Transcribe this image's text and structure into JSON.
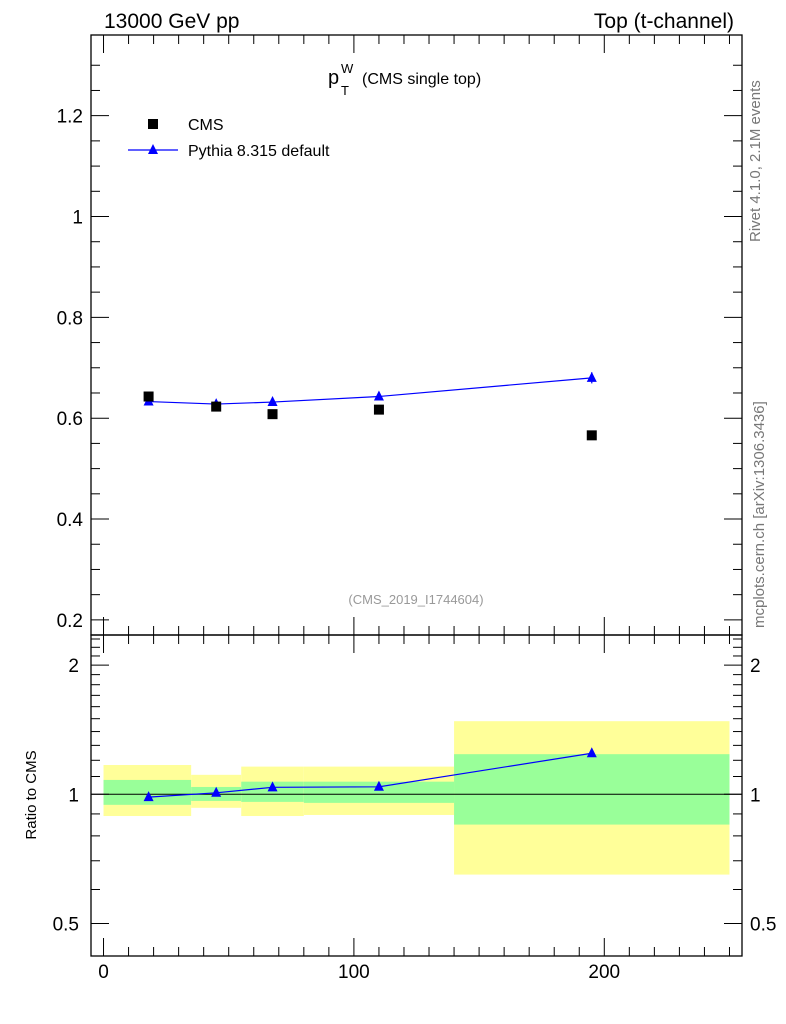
{
  "header": {
    "left": "13000 GeV pp",
    "right": "Top (t-channel)"
  },
  "side": {
    "rivet": "Rivet 4.1.0,  2.1M events",
    "source": "mcplots.cern.ch [arXiv:1306.3436]"
  },
  "colors": {
    "data": "#000000",
    "mc": "#0000ff",
    "band_inner": "#99ff99",
    "band_outer": "#ffff99"
  },
  "chart_data": [
    {
      "type": "scatter",
      "title_main": "p",
      "title_sup": "W",
      "title_sub": "T",
      "title_rest": "(CMS single top)",
      "reference": "(CMS_2019_I1744604)",
      "xlim": [
        -5,
        255
      ],
      "ylim": [
        0.17,
        1.36
      ],
      "yticks": [
        0.2,
        0.4,
        0.6,
        0.8,
        1,
        1.2
      ],
      "ytick_labels": [
        "0.2",
        "0.4",
        "0.6",
        "0.8",
        "1",
        "1.2"
      ],
      "legend": [
        "CMS",
        "Pythia 8.315 default"
      ],
      "series": [
        {
          "name": "CMS",
          "x": [
            18,
            45,
            67.5,
            110,
            195
          ],
          "y": [
            0.643,
            0.623,
            0.608,
            0.617,
            0.566
          ]
        },
        {
          "name": "Pythia 8.315 default",
          "x": [
            18,
            45,
            67.5,
            110,
            195
          ],
          "y": [
            0.633,
            0.628,
            0.632,
            0.643,
            0.68
          ],
          "yerr": [
            0.003,
            0.003,
            0.004,
            0.004,
            0.011
          ]
        }
      ]
    },
    {
      "type": "ratio",
      "ylabel": "Ratio to CMS",
      "xlim": [
        -5,
        255
      ],
      "ylim": [
        0.42,
        2.35
      ],
      "yticks": [
        0.5,
        1,
        2
      ],
      "ytick_labels": [
        "0.5",
        "1",
        "2"
      ],
      "xticks": [
        0,
        100,
        200
      ],
      "xtick_labels": [
        "0",
        "100",
        "200"
      ],
      "bins": [
        {
          "lo": 0,
          "hi": 35,
          "inner": [
            0.945,
            1.08
          ],
          "outer": [
            0.89,
            1.17
          ]
        },
        {
          "lo": 35,
          "hi": 55,
          "inner": [
            0.965,
            1.04
          ],
          "outer": [
            0.93,
            1.11
          ]
        },
        {
          "lo": 55,
          "hi": 80,
          "inner": [
            0.96,
            1.07
          ],
          "outer": [
            0.89,
            1.16
          ]
        },
        {
          "lo": 80,
          "hi": 140,
          "inner": [
            0.955,
            1.07
          ],
          "outer": [
            0.895,
            1.16
          ]
        },
        {
          "lo": 140,
          "hi": 250,
          "inner": [
            0.85,
            1.24
          ],
          "outer": [
            0.65,
            1.48
          ]
        }
      ],
      "mc_ratio": {
        "x": [
          18,
          45,
          67.5,
          110,
          195
        ],
        "y": [
          0.985,
          1.008,
          1.038,
          1.041,
          1.246
        ]
      }
    }
  ]
}
